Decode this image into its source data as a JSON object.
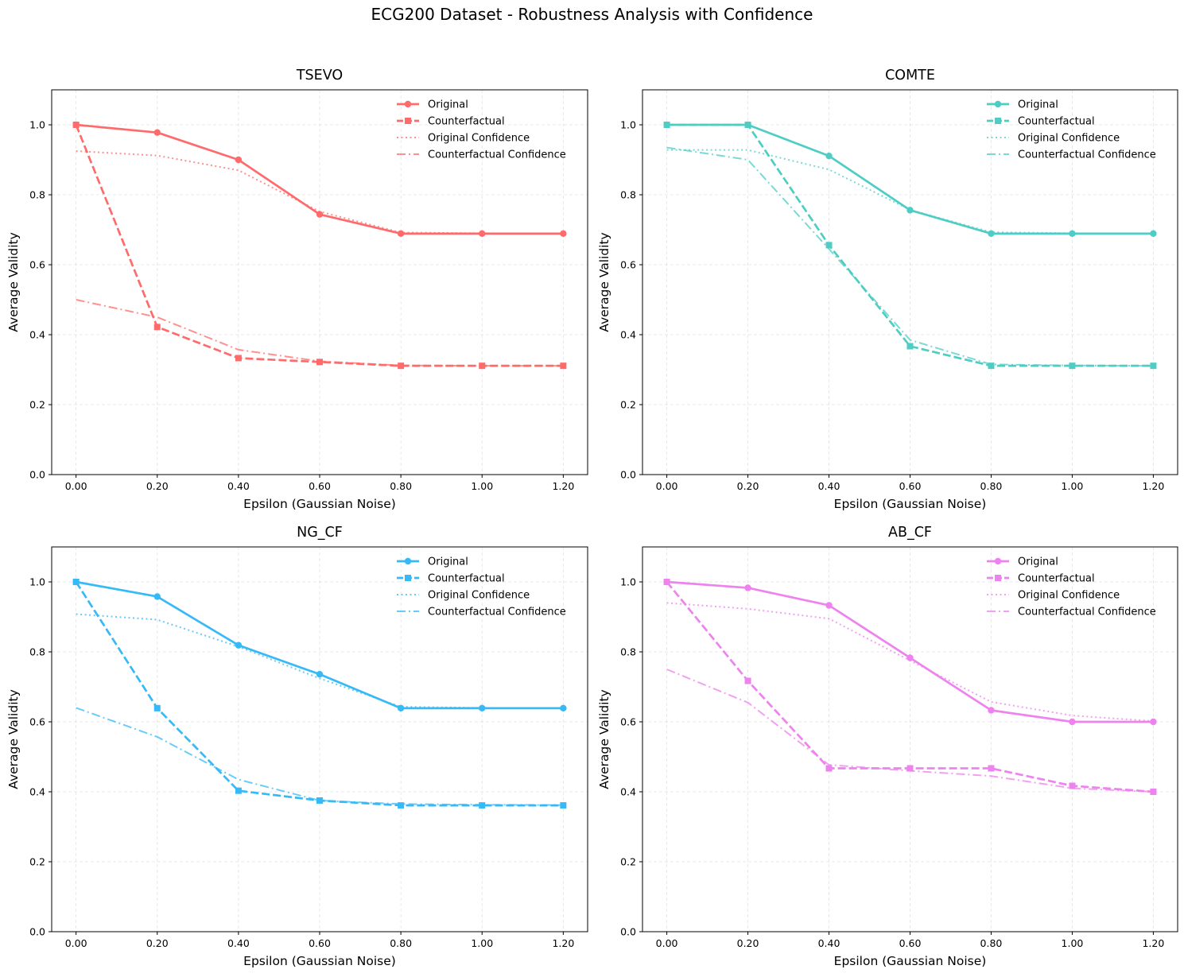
{
  "figure_title": "ECG200 Dataset - Robustness Analysis with Confidence",
  "chart_data": [
    {
      "type": "line",
      "title": "TSEVO",
      "xlabel": "Epsilon (Gaussian Noise)",
      "ylabel": "Average Validity",
      "x": [
        0.0,
        0.2,
        0.4,
        0.6,
        0.8,
        1.0,
        1.2
      ],
      "x_tick_labels": [
        "0.00",
        "0.20",
        "0.40",
        "0.60",
        "0.80",
        "1.00",
        "1.20"
      ],
      "y_ticks": [
        0.0,
        0.2,
        0.4,
        0.6,
        0.8,
        1.0
      ],
      "y_tick_labels": [
        "0.0",
        "0.2",
        "0.4",
        "0.6",
        "0.8",
        "1.0"
      ],
      "xlim": [
        -0.06,
        1.26
      ],
      "ylim": [
        0.0,
        1.1
      ],
      "grid": true,
      "legend_position": "top-right",
      "color": "#ff6b6b",
      "series": [
        {
          "name": "Original",
          "style": "solid-circle",
          "values": [
            1.0,
            0.978,
            0.9,
            0.744,
            0.689,
            0.689,
            0.689
          ]
        },
        {
          "name": "Counterfactual",
          "style": "dashed-square",
          "values": [
            1.0,
            0.422,
            0.333,
            0.322,
            0.311,
            0.311,
            0.311
          ]
        },
        {
          "name": "Original Confidence",
          "style": "dotted",
          "values": [
            0.925,
            0.912,
            0.87,
            0.752,
            0.692,
            0.69,
            0.689
          ]
        },
        {
          "name": "Counterfactual Confidence",
          "style": "dashdot",
          "values": [
            0.5,
            0.45,
            0.357,
            0.324,
            0.312,
            0.311,
            0.311
          ]
        }
      ]
    },
    {
      "type": "line",
      "title": "COMTE",
      "xlabel": "Epsilon (Gaussian Noise)",
      "ylabel": "Average Validity",
      "x": [
        0.0,
        0.2,
        0.4,
        0.6,
        0.8,
        1.0,
        1.2
      ],
      "x_tick_labels": [
        "0.00",
        "0.20",
        "0.40",
        "0.60",
        "0.80",
        "1.00",
        "1.20"
      ],
      "y_ticks": [
        0.0,
        0.2,
        0.4,
        0.6,
        0.8,
        1.0
      ],
      "y_tick_labels": [
        "0.0",
        "0.2",
        "0.4",
        "0.6",
        "0.8",
        "1.0"
      ],
      "xlim": [
        -0.06,
        1.26
      ],
      "ylim": [
        0.0,
        1.1
      ],
      "grid": true,
      "legend_position": "top-right",
      "color": "#4ecdc4",
      "series": [
        {
          "name": "Original",
          "style": "solid-circle",
          "values": [
            1.0,
            1.0,
            0.911,
            0.756,
            0.689,
            0.689,
            0.689
          ]
        },
        {
          "name": "Counterfactual",
          "style": "dashed-square",
          "values": [
            1.0,
            1.0,
            0.656,
            0.367,
            0.311,
            0.311,
            0.311
          ]
        },
        {
          "name": "Original Confidence",
          "style": "dotted",
          "values": [
            0.928,
            0.928,
            0.872,
            0.757,
            0.693,
            0.69,
            0.689
          ]
        },
        {
          "name": "Counterfactual Confidence",
          "style": "dashdot",
          "values": [
            0.935,
            0.9,
            0.645,
            0.385,
            0.315,
            0.312,
            0.311
          ]
        }
      ]
    },
    {
      "type": "line",
      "title": "NG_CF",
      "xlabel": "Epsilon (Gaussian Noise)",
      "ylabel": "Average Validity",
      "x": [
        0.0,
        0.2,
        0.4,
        0.6,
        0.8,
        1.0,
        1.2
      ],
      "x_tick_labels": [
        "0.00",
        "0.20",
        "0.40",
        "0.60",
        "0.80",
        "1.00",
        "1.20"
      ],
      "y_ticks": [
        0.0,
        0.2,
        0.4,
        0.6,
        0.8,
        1.0
      ],
      "y_tick_labels": [
        "0.0",
        "0.2",
        "0.4",
        "0.6",
        "0.8",
        "1.0"
      ],
      "xlim": [
        -0.06,
        1.26
      ],
      "ylim": [
        0.0,
        1.1
      ],
      "grid": true,
      "legend_position": "top-right",
      "color": "#36b9f7",
      "series": [
        {
          "name": "Original",
          "style": "solid-circle",
          "values": [
            1.0,
            0.958,
            0.819,
            0.736,
            0.639,
            0.639,
            0.639
          ]
        },
        {
          "name": "Counterfactual",
          "style": "dashed-square",
          "values": [
            1.0,
            0.639,
            0.403,
            0.375,
            0.361,
            0.361,
            0.361
          ]
        },
        {
          "name": "Original Confidence",
          "style": "dotted",
          "values": [
            0.908,
            0.892,
            0.815,
            0.724,
            0.643,
            0.64,
            0.639
          ]
        },
        {
          "name": "Counterfactual Confidence",
          "style": "dashdot",
          "values": [
            0.64,
            0.557,
            0.435,
            0.375,
            0.365,
            0.363,
            0.362
          ]
        }
      ]
    },
    {
      "type": "line",
      "title": "AB_CF",
      "xlabel": "Epsilon (Gaussian Noise)",
      "ylabel": "Average Validity",
      "x": [
        0.0,
        0.2,
        0.4,
        0.6,
        0.8,
        1.0,
        1.2
      ],
      "x_tick_labels": [
        "0.00",
        "0.20",
        "0.40",
        "0.60",
        "0.80",
        "1.00",
        "1.20"
      ],
      "y_ticks": [
        0.0,
        0.2,
        0.4,
        0.6,
        0.8,
        1.0
      ],
      "y_tick_labels": [
        "0.0",
        "0.2",
        "0.4",
        "0.6",
        "0.8",
        "1.0"
      ],
      "xlim": [
        -0.06,
        1.26
      ],
      "ylim": [
        0.0,
        1.1
      ],
      "grid": true,
      "legend_position": "top-right",
      "color": "#ee82ee",
      "series": [
        {
          "name": "Original",
          "style": "solid-circle",
          "values": [
            1.0,
            0.983,
            0.933,
            0.783,
            0.633,
            0.6,
            0.6
          ]
        },
        {
          "name": "Counterfactual",
          "style": "dashed-square",
          "values": [
            1.0,
            0.717,
            0.467,
            0.467,
            0.467,
            0.417,
            0.4
          ]
        },
        {
          "name": "Original Confidence",
          "style": "dotted",
          "values": [
            0.94,
            0.923,
            0.895,
            0.775,
            0.657,
            0.618,
            0.602
          ]
        },
        {
          "name": "Counterfactual Confidence",
          "style": "dashdot",
          "values": [
            0.75,
            0.655,
            0.477,
            0.46,
            0.445,
            0.41,
            0.4
          ]
        }
      ]
    }
  ]
}
